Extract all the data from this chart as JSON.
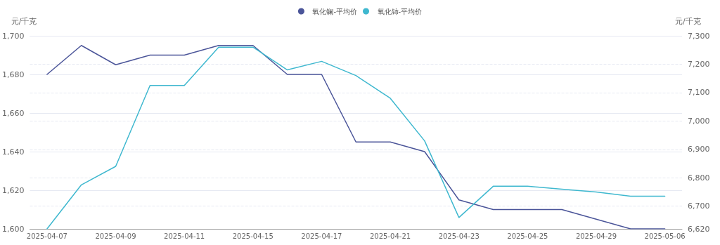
{
  "chart_data": {
    "type": "line",
    "categories": [
      "2025-04-07",
      null,
      "2025-04-09",
      null,
      "2025-04-11",
      null,
      "2025-04-15",
      null,
      "2025-04-17",
      null,
      "2025-04-21",
      null,
      "2025-04-23",
      null,
      "2025-04-25",
      null,
      "2025-04-29",
      null,
      "2025-05-06"
    ],
    "series": [
      {
        "name": "氧化镧-平均价",
        "color": "#4b5599",
        "values": [
          1680,
          1695,
          1685,
          1690,
          1690,
          1695,
          1695,
          1680,
          1680,
          1645,
          1645,
          1640,
          1615,
          1610,
          1610,
          1610,
          1605,
          1600,
          1600
        ]
      },
      {
        "name": "氧化铈-平均价",
        "color": "#3fb8cf",
        "axis": "y2",
        "values": [
          6620,
          6775,
          6840,
          7125,
          7125,
          7260,
          7260,
          7180,
          7210,
          7160,
          7080,
          6930,
          6660,
          6770,
          6770,
          6760,
          6750,
          6735,
          6735
        ]
      }
    ],
    "ylabel": "元/千克",
    "y2label": "元/千克",
    "ylim": [
      1600,
      1700
    ],
    "yticks": [
      {
        "value": 1600,
        "label": "1,600"
      },
      {
        "value": 1620,
        "label": "1,620"
      },
      {
        "value": 1640,
        "label": "1,640"
      },
      {
        "value": 1660,
        "label": "1,660"
      },
      {
        "value": 1680,
        "label": "1,680"
      },
      {
        "value": 1700,
        "label": "1,700"
      }
    ],
    "y2lim": [
      6620,
      7300
    ],
    "y2ticks": [
      {
        "value": 6620,
        "label": "6,620"
      },
      {
        "value": 6700,
        "label": "6,700"
      },
      {
        "value": 6800,
        "label": "6,800"
      },
      {
        "value": 6900,
        "label": "6,900"
      },
      {
        "value": 7000,
        "label": "7,000"
      },
      {
        "value": 7100,
        "label": "7,100"
      },
      {
        "value": 7200,
        "label": "7,200"
      },
      {
        "value": 7300,
        "label": "7,300"
      }
    ],
    "grid": true,
    "legend": "top",
    "marker": "none",
    "line_style": "solid"
  }
}
